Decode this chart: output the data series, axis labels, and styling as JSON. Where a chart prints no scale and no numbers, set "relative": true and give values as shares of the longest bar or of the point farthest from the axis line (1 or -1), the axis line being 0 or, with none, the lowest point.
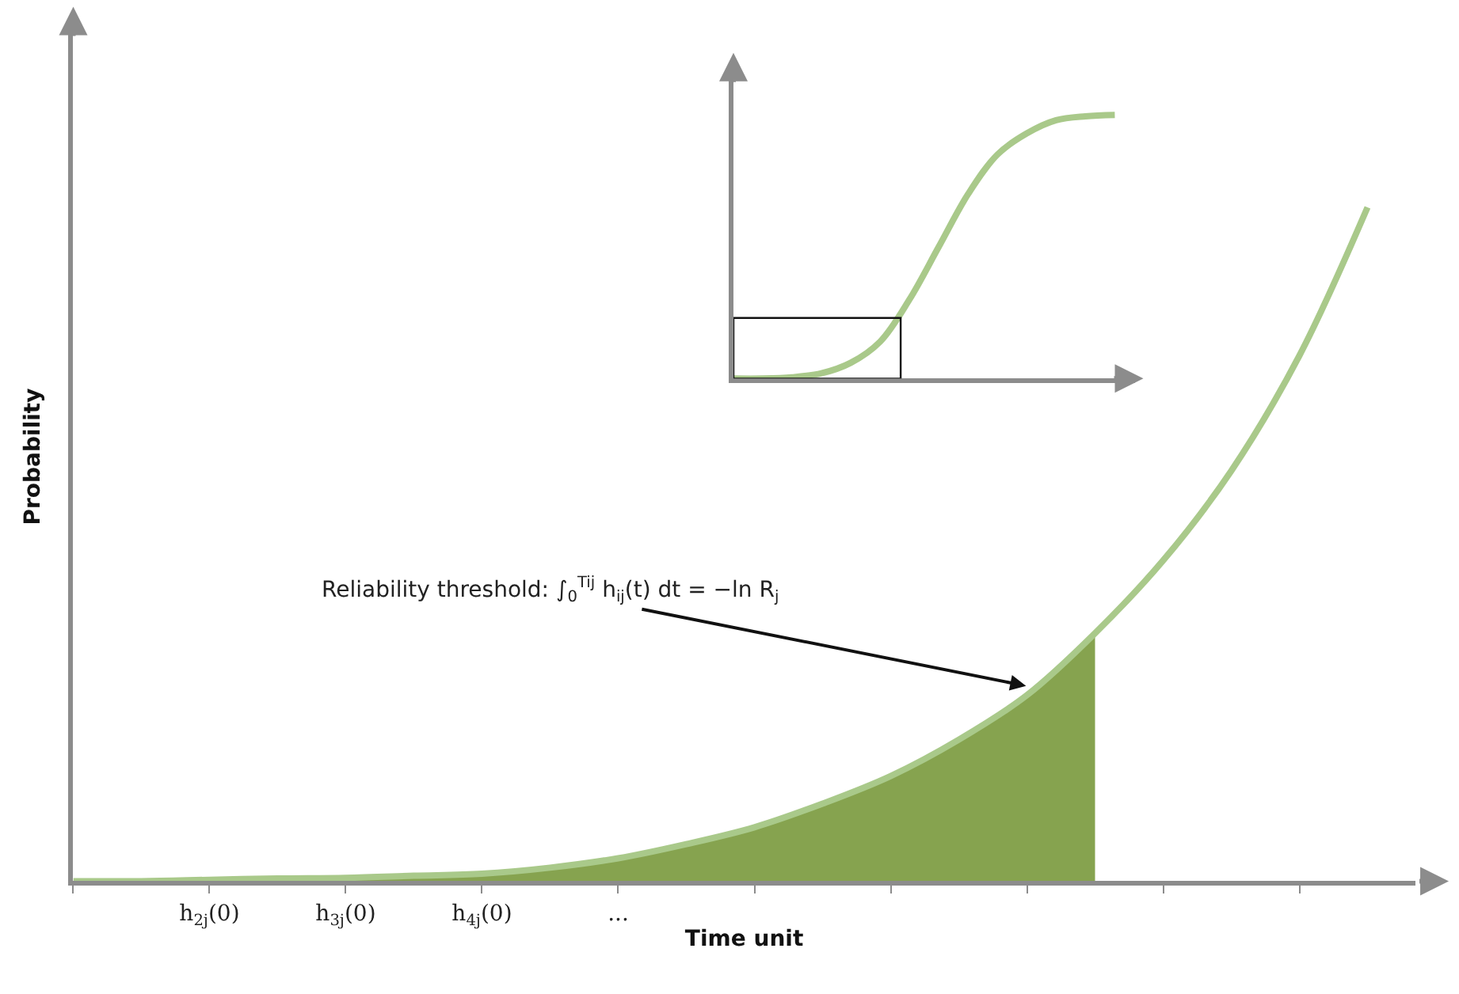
{
  "chart_data": [
    {
      "type": "line",
      "xlabel": "Time unit",
      "ylabel": "Probability",
      "relative": true,
      "tick_labels": "x",
      "marker": "none",
      "categories": [
        null,
        null,
        "h$_{2j}$(0)",
        null,
        "h$_{3j}$(0)",
        null,
        "h$_{4j}$(0)",
        null,
        "...",
        null,
        null,
        null,
        null,
        null,
        null,
        null,
        null,
        null,
        null,
        null
      ],
      "series": [
        {
          "type": "area",
          "color": "#86a34f",
          "values": [
            0,
            0,
            0.002,
            0.004,
            0.005,
            0.008,
            0.011,
            0.02,
            0.034,
            0.055,
            0.08,
            0.115,
            0.156,
            0.21,
            0.276,
            0.368,
            null,
            null,
            null,
            null
          ]
        },
        {
          "type": "line",
          "color": "#a9c98a",
          "values": [
            0,
            0,
            0.002,
            0.004,
            0.005,
            0.008,
            0.011,
            0.02,
            0.034,
            0.055,
            0.08,
            0.115,
            0.156,
            0.21,
            0.276,
            0.368,
            0.476,
            0.609,
            0.78,
            1
          ]
        }
      ],
      "annotations": [
        "Reliability threshold: ∫$_{0}$$^{Tij}$ h$_{ij}$(t) dt = −ln R$_{j}$"
      ]
    },
    {
      "type": "line",
      "relative": true,
      "tick_labels": false,
      "marker": "none",
      "categories": [
        null,
        null,
        null,
        null,
        null,
        null,
        null,
        null,
        null,
        null,
        null,
        null,
        null,
        null
      ],
      "series": [
        {
          "color": "#a9c98a",
          "values": [
            0,
            0,
            0.005,
            0.02,
            0.06,
            0.14,
            0.3,
            0.5,
            0.7,
            0.85,
            0.93,
            0.98,
            0.995,
            1
          ]
        }
      ]
    }
  ]
}
